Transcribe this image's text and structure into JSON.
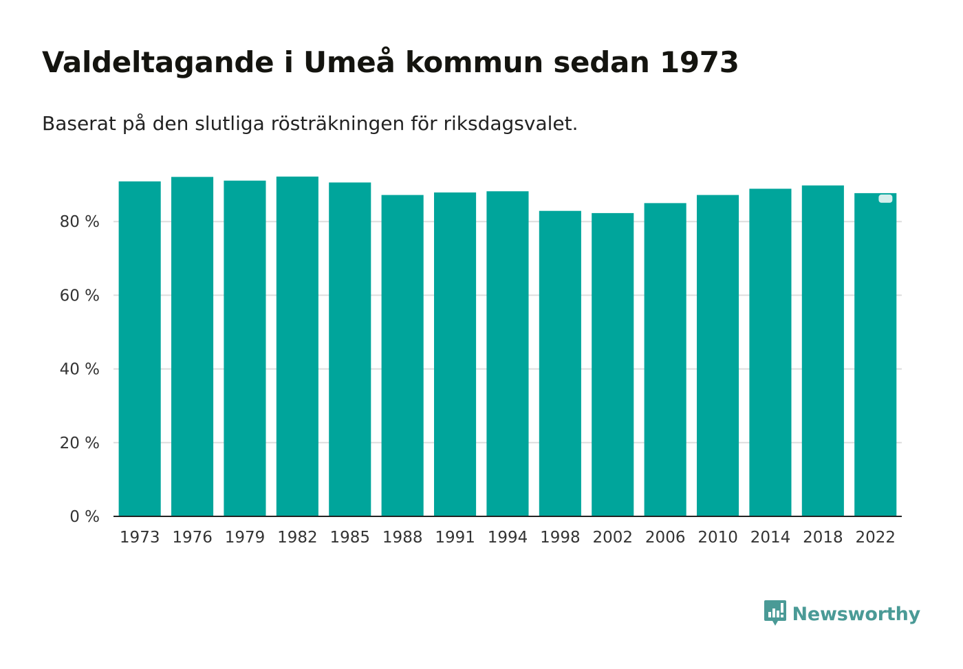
{
  "header": {
    "title": "Valdeltagande i Umeå kommun sedan 1973",
    "subtitle": "Baserat på den slutliga rösträkningen för riksdagsvalet."
  },
  "brand": {
    "name": "Newsworthy",
    "icon": "newsworthy-logo-icon"
  },
  "colors": {
    "bar": "#00a59b",
    "grid": "#dddddd",
    "axis": "#222222",
    "brand": "#4a9a96"
  },
  "chart_data": {
    "type": "bar",
    "title": "Valdeltagande i Umeå kommun sedan 1973",
    "subtitle": "Baserat på den slutliga rösträkningen för riksdagsvalet.",
    "xlabel": "",
    "ylabel": "",
    "categories": [
      "1973",
      "1976",
      "1979",
      "1982",
      "1985",
      "1988",
      "1991",
      "1994",
      "1998",
      "2002",
      "2006",
      "2010",
      "2014",
      "2018",
      "2022"
    ],
    "values": [
      90.9,
      92.1,
      91.1,
      92.2,
      90.6,
      87.2,
      87.9,
      88.2,
      82.9,
      82.3,
      85.0,
      87.2,
      88.9,
      89.8,
      87.7
    ],
    "ylim": [
      0,
      100
    ],
    "yticks": [
      0,
      20,
      40,
      60,
      80
    ],
    "ytick_labels": [
      "0 %",
      "20 %",
      "40 %",
      "60 %",
      "80 %"
    ],
    "grid": true,
    "legend": "none"
  }
}
